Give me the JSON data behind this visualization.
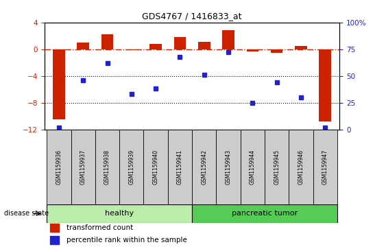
{
  "title": "GDS4767 / 1416833_at",
  "samples": [
    "GSM1159936",
    "GSM1159937",
    "GSM1159938",
    "GSM1159939",
    "GSM1159940",
    "GSM1159941",
    "GSM1159942",
    "GSM1159943",
    "GSM1159944",
    "GSM1159945",
    "GSM1159946",
    "GSM1159947"
  ],
  "transformed_count": [
    -10.5,
    1.0,
    2.2,
    -0.1,
    0.8,
    1.8,
    1.1,
    2.8,
    -0.3,
    -0.5,
    0.5,
    -10.8
  ],
  "percentile_rank": [
    2,
    46,
    62,
    33,
    38,
    68,
    51,
    72,
    25,
    44,
    30,
    2
  ],
  "bar_color": "#cc2200",
  "dot_color": "#2222cc",
  "hline_color": "#cc2200",
  "dotline_color": "#000000",
  "ylim_left": [
    -12,
    4
  ],
  "ylim_right": [
    0,
    100
  ],
  "yticks_left": [
    -12,
    -8,
    -4,
    0,
    4
  ],
  "yticks_right": [
    0,
    25,
    50,
    75,
    100
  ],
  "healthy_color": "#bbeeaa",
  "tumor_color": "#55cc55",
  "sample_box_color": "#cccccc"
}
